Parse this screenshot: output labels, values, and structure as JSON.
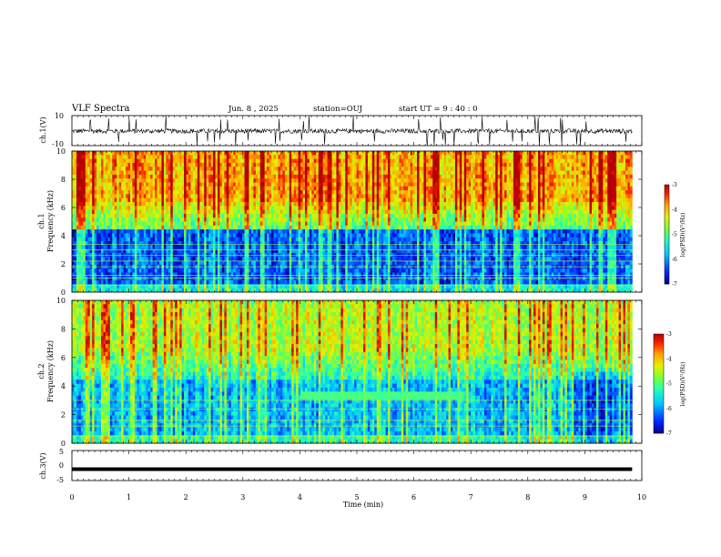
{
  "header": {
    "title": "VLF Spectra",
    "date": "Jun. 8 , 2025",
    "station": "station=OUJ",
    "start": "start UT =  9 : 40 : 0"
  },
  "chart_data": [
    {
      "type": "line",
      "panel": "ch1-waveform",
      "ylabel": "ch.1(V)",
      "ylim": [
        -10,
        10
      ],
      "yticks": [
        "10",
        "-10"
      ],
      "xlim": [
        0,
        10
      ],
      "x_extent": [
        0,
        9.83
      ],
      "baseline": -0.3,
      "description_values": {
        "noise_amplitude": 1.5,
        "spike_amplitude": 10
      }
    },
    {
      "type": "heatmap",
      "panel": "ch1-spectrogram",
      "ylabel": "ch.1",
      "ylabel2": "Frequency (kHz)",
      "ylim": [
        0,
        10
      ],
      "yticks": [
        "0",
        "2",
        "4",
        "6",
        "8",
        "10"
      ],
      "xlim": [
        0,
        10
      ],
      "x_extent": [
        0,
        9.83
      ],
      "colorbar": {
        "label": "log(PSD)(V²/Hz)",
        "min": -7,
        "max": -3,
        "ticks": [
          "-3",
          "-4",
          "-5",
          "-6",
          "-7"
        ]
      },
      "horizontal_lines_khz": [
        0.5,
        1.0,
        1.2,
        1.8,
        2.2,
        2.6,
        3.0,
        3.4
      ],
      "low_level_band_khz": [
        0.5,
        4.5
      ],
      "high_level_band_khz": [
        6.5,
        10
      ]
    },
    {
      "type": "heatmap",
      "panel": "ch2-spectrogram",
      "ylabel": "ch.2",
      "ylabel2": "Frequency (kHz)",
      "ylim": [
        0,
        10
      ],
      "yticks": [
        "0",
        "2",
        "4",
        "6",
        "8",
        "10"
      ],
      "xlim": [
        0,
        10
      ],
      "x_extent": [
        0,
        9.83
      ],
      "colorbar": {
        "label": "log(PSD)(V²/Hz)",
        "min": -7,
        "max": -3,
        "ticks": [
          "-3",
          "-4",
          "-5",
          "-6",
          "-7"
        ]
      },
      "horizontal_lines_khz": [
        0.5,
        1.2,
        1.6,
        2.4,
        3.0
      ],
      "band_feature": {
        "x_start_min": 4.0,
        "x_end_min": 6.9,
        "freq_khz": 3.4
      }
    },
    {
      "type": "line",
      "panel": "ch3-trace",
      "ylabel": "ch.3(V)",
      "ylim": [
        -5,
        5
      ],
      "yticks": [
        "5",
        "0",
        "-5"
      ],
      "xlim": [
        0,
        10
      ],
      "x_extent": [
        0,
        9.83
      ],
      "x": [
        0,
        9.83
      ],
      "y": [
        -1.2,
        -1.2
      ],
      "xlabel": "Time (min)",
      "xticks": [
        "0",
        "1",
        "2",
        "3",
        "4",
        "5",
        "6",
        "7",
        "8",
        "9",
        "10"
      ]
    }
  ]
}
